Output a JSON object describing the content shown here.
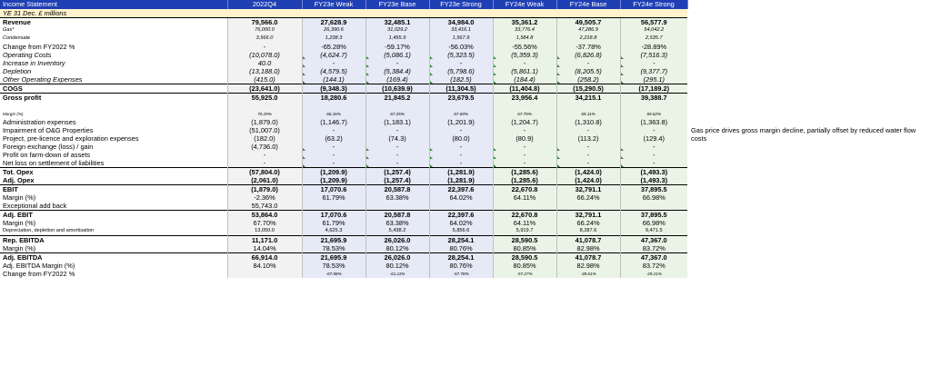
{
  "sheet": {
    "headers": [
      "Income Statement",
      "2022Q4",
      "FY23e Weak",
      "FY23e Base",
      "FY23e Strong",
      "FY24e Weak",
      "FY24e Base",
      "FY24e Strong"
    ],
    "subheader": "YE 31 Dec. £ millions",
    "rows": [
      {
        "label": "Revenue",
        "style": "b",
        "values": [
          "79,566.0",
          "27,628.9",
          "32,485.1",
          "34,984.0",
          "35,361.2",
          "49,505.7",
          "56,577.9"
        ]
      },
      {
        "label": "Gas*",
        "style": "sm it",
        "values": [
          "76,000.0",
          "26,390.6",
          "31,029.2",
          "33,416.1",
          "33,776.4",
          "47,286.9",
          "54,042.2"
        ]
      },
      {
        "label": "Condensate",
        "style": "sm it",
        "values": [
          "3,566.0",
          "1,238.3",
          "1,455.9",
          "1,567.9",
          "1,584.8",
          "2,218.8",
          "2,535.7"
        ]
      },
      {
        "label": "Change from FY2022 %",
        "style": "",
        "values": [
          "-",
          "-65.28%",
          "-59.17%",
          "-56.03%",
          "-55.56%",
          "-37.78%",
          "-28.89%"
        ]
      },
      {
        "label": "Operating Costs",
        "style": "it",
        "values": [
          "(10,078.0)",
          "(4,624.7)",
          "(5,086.1)",
          "(5,323.5)",
          "(5,359.3)",
          "(6,826.8)",
          "(7,516.3)"
        ]
      },
      {
        "label": "Increase in Inventory",
        "style": "it",
        "values": [
          "40.0",
          "-",
          "-",
          "-",
          "-",
          "-",
          "-"
        ]
      },
      {
        "label": "Depletion",
        "style": "it",
        "values": [
          "(13,188.0)",
          "(4,579.5)",
          "(5,384.4)",
          "(5,798.6)",
          "(5,861.1)",
          "(8,205.5)",
          "(9,377.7)"
        ]
      },
      {
        "label": "Other Operating Expenses",
        "style": "it",
        "values": [
          "(415.0)",
          "(144.1)",
          "(169.4)",
          "(182.5)",
          "(184.4)",
          "(258.2)",
          "(295.1)"
        ]
      },
      {
        "label": "COGS",
        "style": "b",
        "values": [
          "(23,641.0)",
          "(9,348.3)",
          "(10,639.9)",
          "(11,304.5)",
          "(11,404.8)",
          "(15,290.5)",
          "(17,189.2)"
        ]
      },
      {
        "label": "Gross profit",
        "style": "b",
        "values": [
          "55,925.0",
          "18,280.6",
          "21,845.2",
          "23,679.5",
          "23,956.4",
          "34,215.1",
          "39,388.7"
        ]
      },
      {
        "label": "",
        "style": "",
        "values": [
          "",
          "",
          "",
          "",
          "",
          "",
          ""
        ]
      },
      {
        "label": "Margin (%)",
        "style": "tiny",
        "values": [
          "70.29%",
          "66.16%",
          "67.25%",
          "67.69%",
          "67.75%",
          "69.11%",
          "69.62%"
        ]
      },
      {
        "label": "Administration expenses",
        "style": "",
        "values": [
          "(1,879.0)",
          "(1,146.7)",
          "(1,183.1)",
          "(1,201.9)",
          "(1,204.7)",
          "(1,310.8)",
          "(1,363.8)"
        ]
      },
      {
        "label": "Impairment of O&G Properties",
        "style": "",
        "values": [
          "(51,007.0)",
          "-",
          "-",
          "-",
          "-",
          "-",
          "-"
        ]
      },
      {
        "label": "Project, pre-licence and exploration expenses",
        "style": "",
        "values": [
          "(182.0)",
          "(63.2)",
          "(74.3)",
          "(80.0)",
          "(80.9)",
          "(113.2)",
          "(129.4)"
        ]
      },
      {
        "label": "Foreign exchange (loss) / gain",
        "style": "",
        "values": [
          "(4,736.0)",
          "-",
          "-",
          "-",
          "-",
          "-",
          "-"
        ]
      },
      {
        "label": "Profit on farm-down of assets",
        "style": "",
        "values": [
          "-",
          "-",
          "-",
          "-",
          "-",
          "-",
          "-"
        ]
      },
      {
        "label": "Net loss on settlement of liabilities",
        "style": "",
        "values": [
          "-",
          "-",
          "-",
          "-",
          "-",
          "-",
          "-"
        ]
      },
      {
        "label": "Tot. Opex",
        "style": "b",
        "values": [
          "(57,804.0)",
          "(1,209.9)",
          "(1,257.4)",
          "(1,281.9)",
          "(1,285.6)",
          "(1,424.0)",
          "(1,493.3)"
        ]
      },
      {
        "label": "Adj. Opex",
        "style": "b",
        "values": [
          "(2,061.0)",
          "(1,209.9)",
          "(1,257.4)",
          "(1,281.9)",
          "(1,285.6)",
          "(1,424.0)",
          "(1,493.3)"
        ]
      },
      {
        "label": "EBIT",
        "style": "b",
        "values": [
          "(1,879.0)",
          "17,070.6",
          "20,587.8",
          "22,397.6",
          "22,670.8",
          "32,791.1",
          "37,895.5"
        ]
      },
      {
        "label": "Margin (%)",
        "style": "",
        "values": [
          "-2.36%",
          "61.79%",
          "63.38%",
          "64.02%",
          "64.11%",
          "66.24%",
          "66.98%"
        ]
      },
      {
        "label": "Exceptional add back",
        "style": "",
        "values": [
          "55,743.0",
          "",
          "",
          "",
          "",
          "",
          ""
        ]
      },
      {
        "label": "Adj. EBIT",
        "style": "b",
        "values": [
          "53,864.0",
          "17,070.6",
          "20,587.8",
          "22,397.6",
          "22,670.8",
          "32,791.1",
          "37,895.5"
        ]
      },
      {
        "label": "Margin (%)",
        "style": "",
        "values": [
          "67.70%",
          "61.79%",
          "63.38%",
          "64.02%",
          "64.11%",
          "66.24%",
          "66.98%"
        ]
      },
      {
        "label": "Depreciation, depletion and amortisation",
        "style": "sm",
        "values": [
          "13,050.0",
          "4,625.3",
          "5,438.2",
          "5,856.6",
          "5,919.7",
          "8,287.6",
          "9,471.5"
        ]
      },
      {
        "label": "Rep. EBITDA",
        "style": "b",
        "values": [
          "11,171.0",
          "21,695.9",
          "26,026.0",
          "28,254.1",
          "28,590.5",
          "41,078.7",
          "47,367.0"
        ]
      },
      {
        "label": "Margin (%)",
        "style": "",
        "values": [
          "14.04%",
          "78.53%",
          "80.12%",
          "80.76%",
          "80.85%",
          "82.98%",
          "83.72%"
        ]
      },
      {
        "label": "Adj. EBITDA",
        "style": "b",
        "values": [
          "66,914.0",
          "21,695.9",
          "26,026.0",
          "28,254.1",
          "28,590.5",
          "41,078.7",
          "47,367.0"
        ]
      },
      {
        "label": "Adj. EBITDA Margin (%)",
        "style": "",
        "values": [
          "84.10%",
          "78.53%",
          "80.12%",
          "80.76%",
          "80.85%",
          "82.98%",
          "83.72%"
        ]
      },
      {
        "label": "Change from FY2022 %",
        "style": "",
        "valueStyle": "tiny",
        "values": [
          "",
          "-67.58%",
          "-61.11%",
          "-57.78%",
          "-57.27%",
          "-38.61%",
          "-29.21%"
        ]
      }
    ]
  },
  "note": "Gas price drives gross margin decline, partially offset by reduced water flow costs"
}
